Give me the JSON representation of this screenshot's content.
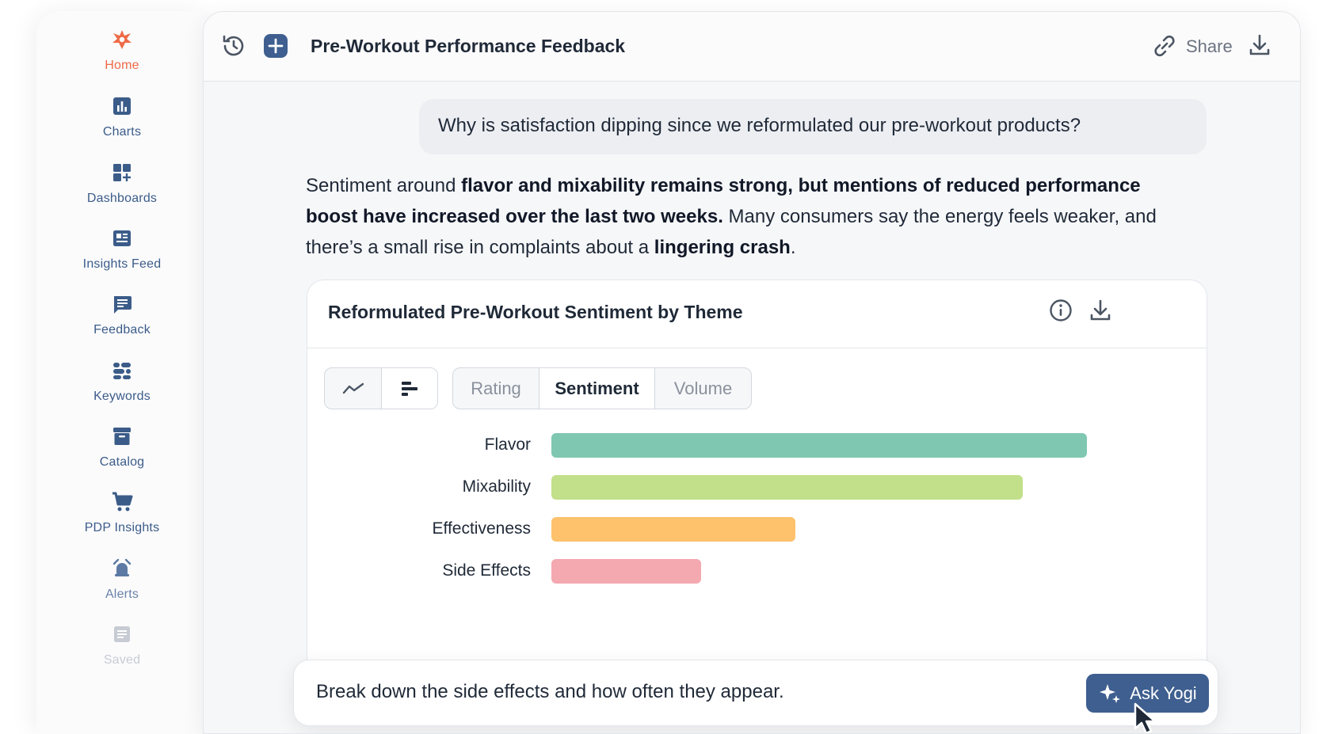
{
  "sidebar": {
    "items": [
      {
        "label": "Home",
        "icon": "logo-icon",
        "active": true
      },
      {
        "label": "Charts",
        "icon": "bar-chart-icon"
      },
      {
        "label": "Dashboards",
        "icon": "dashboard-grid-icon"
      },
      {
        "label": "Insights Feed",
        "icon": "newspaper-icon"
      },
      {
        "label": "Feedback",
        "icon": "message-icon"
      },
      {
        "label": "Keywords",
        "icon": "tags-icon"
      },
      {
        "label": "Catalog",
        "icon": "archive-icon"
      },
      {
        "label": "PDP Insights",
        "icon": "cart-icon"
      },
      {
        "label": "Alerts",
        "icon": "bell-icon"
      },
      {
        "label": "Saved",
        "icon": "saved-icon",
        "faded": true
      }
    ]
  },
  "header": {
    "title": "Pre-Workout Performance Feedback",
    "share_label": "Share",
    "icons": [
      "history-icon",
      "plus-icon",
      "link-icon",
      "download-icon"
    ]
  },
  "conversation": {
    "question": "Why is satisfaction dipping since we reformulated our pre-workout products?",
    "answer": {
      "p1": "Sentiment around ",
      "b1": "flavor and mixability remains strong, but mentions of reduced performance boost have increased over the last two weeks.",
      "p2": " Many consumers say the energy feels weaker, and there’s a small rise in complaints about a ",
      "b2": "lingering crash",
      "p3": "."
    }
  },
  "chart_card": {
    "title": "Reformulated Pre-Workout Sentiment by Theme",
    "view_toggle": [
      "line-chart-icon",
      "horizontal-bar-icon"
    ],
    "metric_tabs": [
      {
        "label": "Rating",
        "selected": false
      },
      {
        "label": "Sentiment",
        "selected": true
      },
      {
        "label": "Volume",
        "selected": false
      }
    ]
  },
  "chart_data": {
    "type": "bar",
    "orientation": "horizontal",
    "title": "Reformulated Pre-Workout Sentiment by Theme",
    "categories": [
      "Flavor",
      "Mixability",
      "Effectiveness",
      "Side Effects"
    ],
    "values": [
      100,
      88,
      45.5,
      28
    ],
    "colors": [
      "#7fc7b0",
      "#c2df8a",
      "#fec16c",
      "#f4a8b0"
    ],
    "xlim": [
      0,
      100
    ],
    "grid": false,
    "legend": "none"
  },
  "prompt": {
    "text": "Break down the side effects and how often they appear.",
    "button_label": "Ask Yogi"
  },
  "colors": {
    "accent": "#3e5f8f",
    "brand": "#ee6a45",
    "nav": "#3b5c89"
  }
}
